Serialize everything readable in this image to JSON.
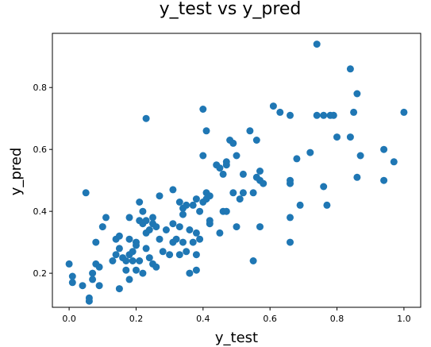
{
  "chart_data": {
    "type": "scatter",
    "title": "y_test vs y_pred",
    "xlabel": "y_test",
    "ylabel": "y_pred",
    "xlim": [
      -0.05,
      1.05
    ],
    "ylim": [
      0.09,
      0.975
    ],
    "xticks": [
      0.0,
      0.2,
      0.4,
      0.6,
      0.8,
      1.0
    ],
    "xtick_labels": [
      "0.0",
      "0.2",
      "0.4",
      "0.6",
      "0.8",
      "1.0"
    ],
    "yticks": [
      0.2,
      0.4,
      0.6,
      0.8
    ],
    "ytick_labels": [
      "0.2",
      "0.4",
      "0.6",
      "0.8"
    ],
    "grid": false,
    "color": "#1f77b4",
    "points": [
      {
        "x": 0.0,
        "y": 0.23
      },
      {
        "x": 0.01,
        "y": 0.19
      },
      {
        "x": 0.01,
        "y": 0.17
      },
      {
        "x": 0.04,
        "y": 0.16
      },
      {
        "x": 0.05,
        "y": 0.46
      },
      {
        "x": 0.06,
        "y": 0.12
      },
      {
        "x": 0.06,
        "y": 0.11
      },
      {
        "x": 0.07,
        "y": 0.2
      },
      {
        "x": 0.07,
        "y": 0.18
      },
      {
        "x": 0.08,
        "y": 0.3
      },
      {
        "x": 0.08,
        "y": 0.23
      },
      {
        "x": 0.09,
        "y": 0.22
      },
      {
        "x": 0.09,
        "y": 0.16
      },
      {
        "x": 0.1,
        "y": 0.35
      },
      {
        "x": 0.11,
        "y": 0.38
      },
      {
        "x": 0.13,
        "y": 0.24
      },
      {
        "x": 0.14,
        "y": 0.31
      },
      {
        "x": 0.14,
        "y": 0.26
      },
      {
        "x": 0.15,
        "y": 0.32
      },
      {
        "x": 0.15,
        "y": 0.28
      },
      {
        "x": 0.15,
        "y": 0.15
      },
      {
        "x": 0.16,
        "y": 0.25
      },
      {
        "x": 0.17,
        "y": 0.24
      },
      {
        "x": 0.17,
        "y": 0.21
      },
      {
        "x": 0.18,
        "y": 0.38
      },
      {
        "x": 0.18,
        "y": 0.31
      },
      {
        "x": 0.18,
        "y": 0.26
      },
      {
        "x": 0.18,
        "y": 0.18
      },
      {
        "x": 0.19,
        "y": 0.24
      },
      {
        "x": 0.19,
        "y": 0.27
      },
      {
        "x": 0.2,
        "y": 0.29
      },
      {
        "x": 0.2,
        "y": 0.3
      },
      {
        "x": 0.2,
        "y": 0.21
      },
      {
        "x": 0.21,
        "y": 0.37
      },
      {
        "x": 0.21,
        "y": 0.43
      },
      {
        "x": 0.21,
        "y": 0.24
      },
      {
        "x": 0.22,
        "y": 0.4
      },
      {
        "x": 0.22,
        "y": 0.36
      },
      {
        "x": 0.22,
        "y": 0.2
      },
      {
        "x": 0.23,
        "y": 0.37
      },
      {
        "x": 0.23,
        "y": 0.33
      },
      {
        "x": 0.23,
        "y": 0.28
      },
      {
        "x": 0.23,
        "y": 0.7
      },
      {
        "x": 0.24,
        "y": 0.34
      },
      {
        "x": 0.24,
        "y": 0.25
      },
      {
        "x": 0.25,
        "y": 0.38
      },
      {
        "x": 0.25,
        "y": 0.36
      },
      {
        "x": 0.25,
        "y": 0.23
      },
      {
        "x": 0.26,
        "y": 0.35
      },
      {
        "x": 0.26,
        "y": 0.22
      },
      {
        "x": 0.27,
        "y": 0.45
      },
      {
        "x": 0.27,
        "y": 0.31
      },
      {
        "x": 0.28,
        "y": 0.27
      },
      {
        "x": 0.29,
        "y": 0.34
      },
      {
        "x": 0.3,
        "y": 0.26
      },
      {
        "x": 0.31,
        "y": 0.47
      },
      {
        "x": 0.31,
        "y": 0.36
      },
      {
        "x": 0.31,
        "y": 0.3
      },
      {
        "x": 0.32,
        "y": 0.31
      },
      {
        "x": 0.33,
        "y": 0.43
      },
      {
        "x": 0.33,
        "y": 0.35
      },
      {
        "x": 0.33,
        "y": 0.26
      },
      {
        "x": 0.34,
        "y": 0.3
      },
      {
        "x": 0.34,
        "y": 0.39
      },
      {
        "x": 0.34,
        "y": 0.41
      },
      {
        "x": 0.35,
        "y": 0.42
      },
      {
        "x": 0.35,
        "y": 0.27
      },
      {
        "x": 0.36,
        "y": 0.2
      },
      {
        "x": 0.36,
        "y": 0.34
      },
      {
        "x": 0.37,
        "y": 0.3
      },
      {
        "x": 0.37,
        "y": 0.42
      },
      {
        "x": 0.38,
        "y": 0.44
      },
      {
        "x": 0.38,
        "y": 0.33
      },
      {
        "x": 0.38,
        "y": 0.21
      },
      {
        "x": 0.38,
        "y": 0.26
      },
      {
        "x": 0.39,
        "y": 0.31
      },
      {
        "x": 0.39,
        "y": 0.4
      },
      {
        "x": 0.4,
        "y": 0.43
      },
      {
        "x": 0.4,
        "y": 0.58
      },
      {
        "x": 0.4,
        "y": 0.73
      },
      {
        "x": 0.41,
        "y": 0.66
      },
      {
        "x": 0.41,
        "y": 0.46
      },
      {
        "x": 0.41,
        "y": 0.44
      },
      {
        "x": 0.42,
        "y": 0.45
      },
      {
        "x": 0.42,
        "y": 0.37
      },
      {
        "x": 0.42,
        "y": 0.36
      },
      {
        "x": 0.44,
        "y": 0.55
      },
      {
        "x": 0.45,
        "y": 0.33
      },
      {
        "x": 0.45,
        "y": 0.54
      },
      {
        "x": 0.46,
        "y": 0.52
      },
      {
        "x": 0.46,
        "y": 0.4
      },
      {
        "x": 0.47,
        "y": 0.55
      },
      {
        "x": 0.47,
        "y": 0.56
      },
      {
        "x": 0.47,
        "y": 0.4
      },
      {
        "x": 0.48,
        "y": 0.63
      },
      {
        "x": 0.49,
        "y": 0.62
      },
      {
        "x": 0.49,
        "y": 0.46
      },
      {
        "x": 0.5,
        "y": 0.58
      },
      {
        "x": 0.5,
        "y": 0.35
      },
      {
        "x": 0.51,
        "y": 0.44
      },
      {
        "x": 0.52,
        "y": 0.46
      },
      {
        "x": 0.52,
        "y": 0.52
      },
      {
        "x": 0.54,
        "y": 0.66
      },
      {
        "x": 0.55,
        "y": 0.24
      },
      {
        "x": 0.55,
        "y": 0.46
      },
      {
        "x": 0.56,
        "y": 0.51
      },
      {
        "x": 0.56,
        "y": 0.63
      },
      {
        "x": 0.57,
        "y": 0.5
      },
      {
        "x": 0.57,
        "y": 0.35
      },
      {
        "x": 0.57,
        "y": 0.53
      },
      {
        "x": 0.58,
        "y": 0.49
      },
      {
        "x": 0.61,
        "y": 0.74
      },
      {
        "x": 0.63,
        "y": 0.72
      },
      {
        "x": 0.66,
        "y": 0.71
      },
      {
        "x": 0.66,
        "y": 0.49
      },
      {
        "x": 0.66,
        "y": 0.38
      },
      {
        "x": 0.66,
        "y": 0.3
      },
      {
        "x": 0.66,
        "y": 0.5
      },
      {
        "x": 0.68,
        "y": 0.57
      },
      {
        "x": 0.69,
        "y": 0.42
      },
      {
        "x": 0.72,
        "y": 0.59
      },
      {
        "x": 0.74,
        "y": 0.71
      },
      {
        "x": 0.74,
        "y": 0.94
      },
      {
        "x": 0.76,
        "y": 0.71
      },
      {
        "x": 0.76,
        "y": 0.48
      },
      {
        "x": 0.77,
        "y": 0.42
      },
      {
        "x": 0.78,
        "y": 0.71
      },
      {
        "x": 0.79,
        "y": 0.71
      },
      {
        "x": 0.8,
        "y": 0.64
      },
      {
        "x": 0.84,
        "y": 0.64
      },
      {
        "x": 0.84,
        "y": 0.86
      },
      {
        "x": 0.85,
        "y": 0.72
      },
      {
        "x": 0.86,
        "y": 0.78
      },
      {
        "x": 0.86,
        "y": 0.51
      },
      {
        "x": 0.87,
        "y": 0.58
      },
      {
        "x": 0.94,
        "y": 0.6
      },
      {
        "x": 0.94,
        "y": 0.5
      },
      {
        "x": 0.97,
        "y": 0.56
      },
      {
        "x": 1.0,
        "y": 0.72
      }
    ]
  }
}
